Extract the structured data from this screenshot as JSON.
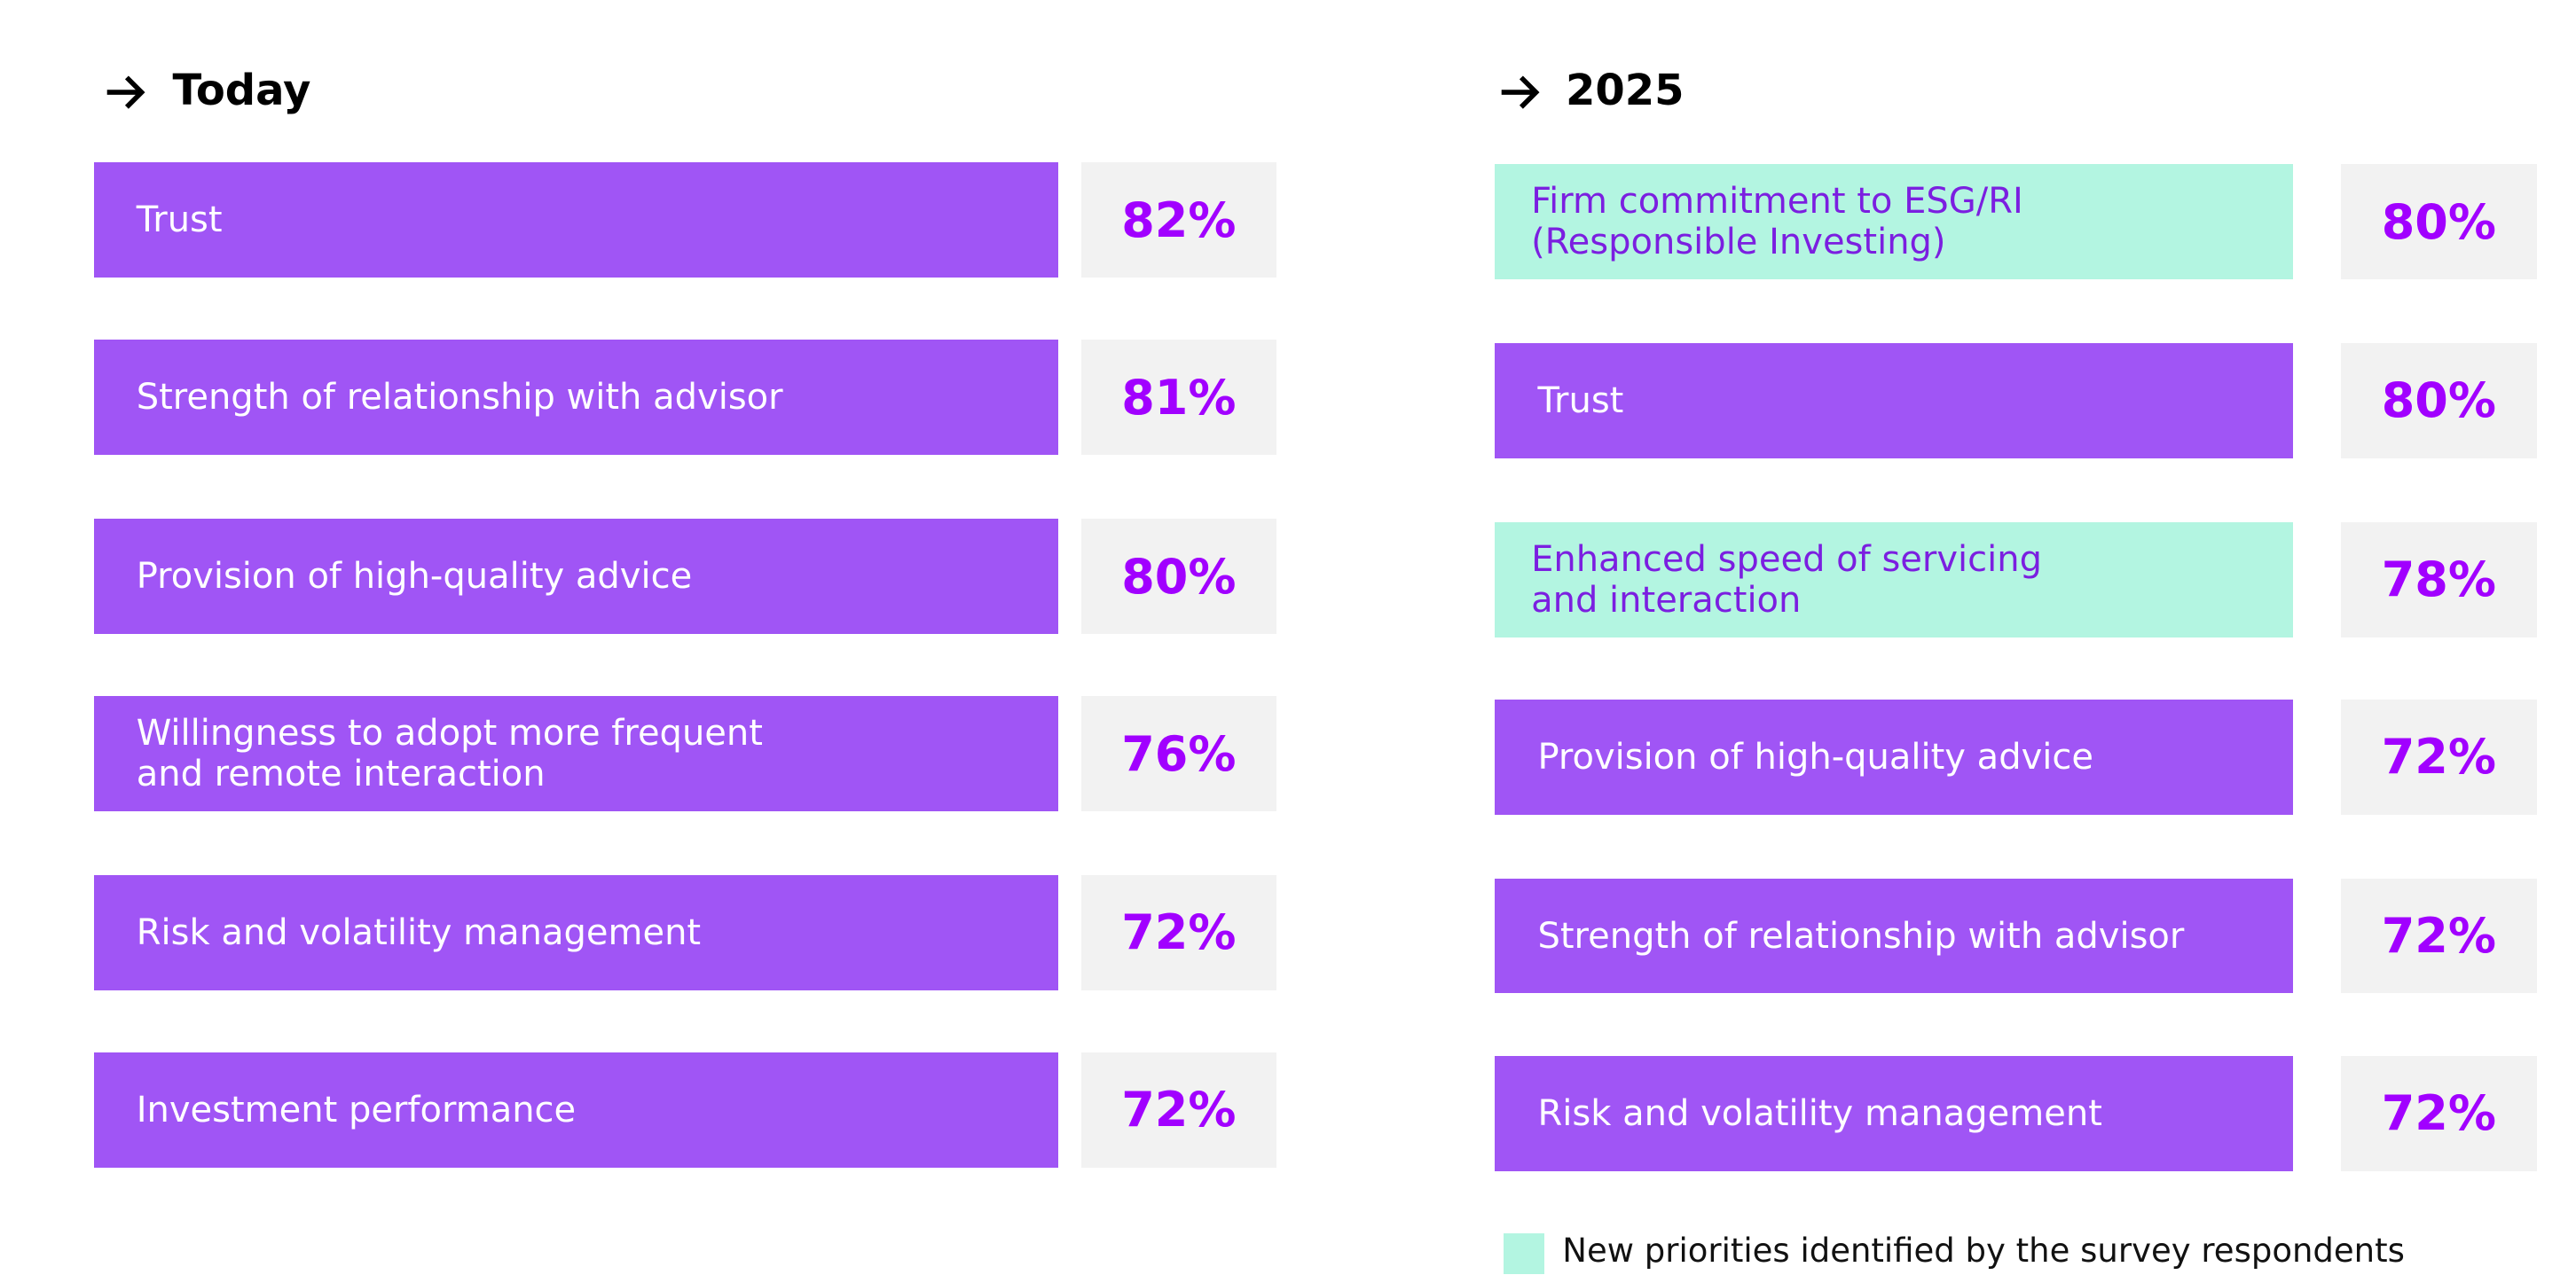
{
  "columns": [
    {
      "title": "Today",
      "items": [
        {
          "label": "Trust",
          "value": "82%",
          "new": false
        },
        {
          "label": "Strength of relationship with advisor",
          "value": "81%",
          "new": false
        },
        {
          "label": "Provision of high-quality advice",
          "value": "80%",
          "new": false
        },
        {
          "label": "Willingness to adopt more frequent\nand remote interaction",
          "value": "76%",
          "new": false
        },
        {
          "label": "Risk and volatility management",
          "value": "72%",
          "new": false
        },
        {
          "label": "Investment performance",
          "value": "72%",
          "new": false
        }
      ]
    },
    {
      "title": "2025",
      "items": [
        {
          "label": "Firm commitment to ESG/RI\n(Responsible Investing)",
          "value": "80%",
          "new": true
        },
        {
          "label": "Trust",
          "value": "80%",
          "new": false
        },
        {
          "label": "Enhanced speed of servicing\nand interaction",
          "value": "78%",
          "new": true
        },
        {
          "label": "Provision of high-quality advice",
          "value": "72%",
          "new": false
        },
        {
          "label": "Strength of relationship with advisor",
          "value": "72%",
          "new": false
        },
        {
          "label": "Risk and volatility management",
          "value": "72%",
          "new": false
        }
      ]
    }
  ],
  "legend": {
    "label": "New priorities identified by the survey respondents"
  }
}
